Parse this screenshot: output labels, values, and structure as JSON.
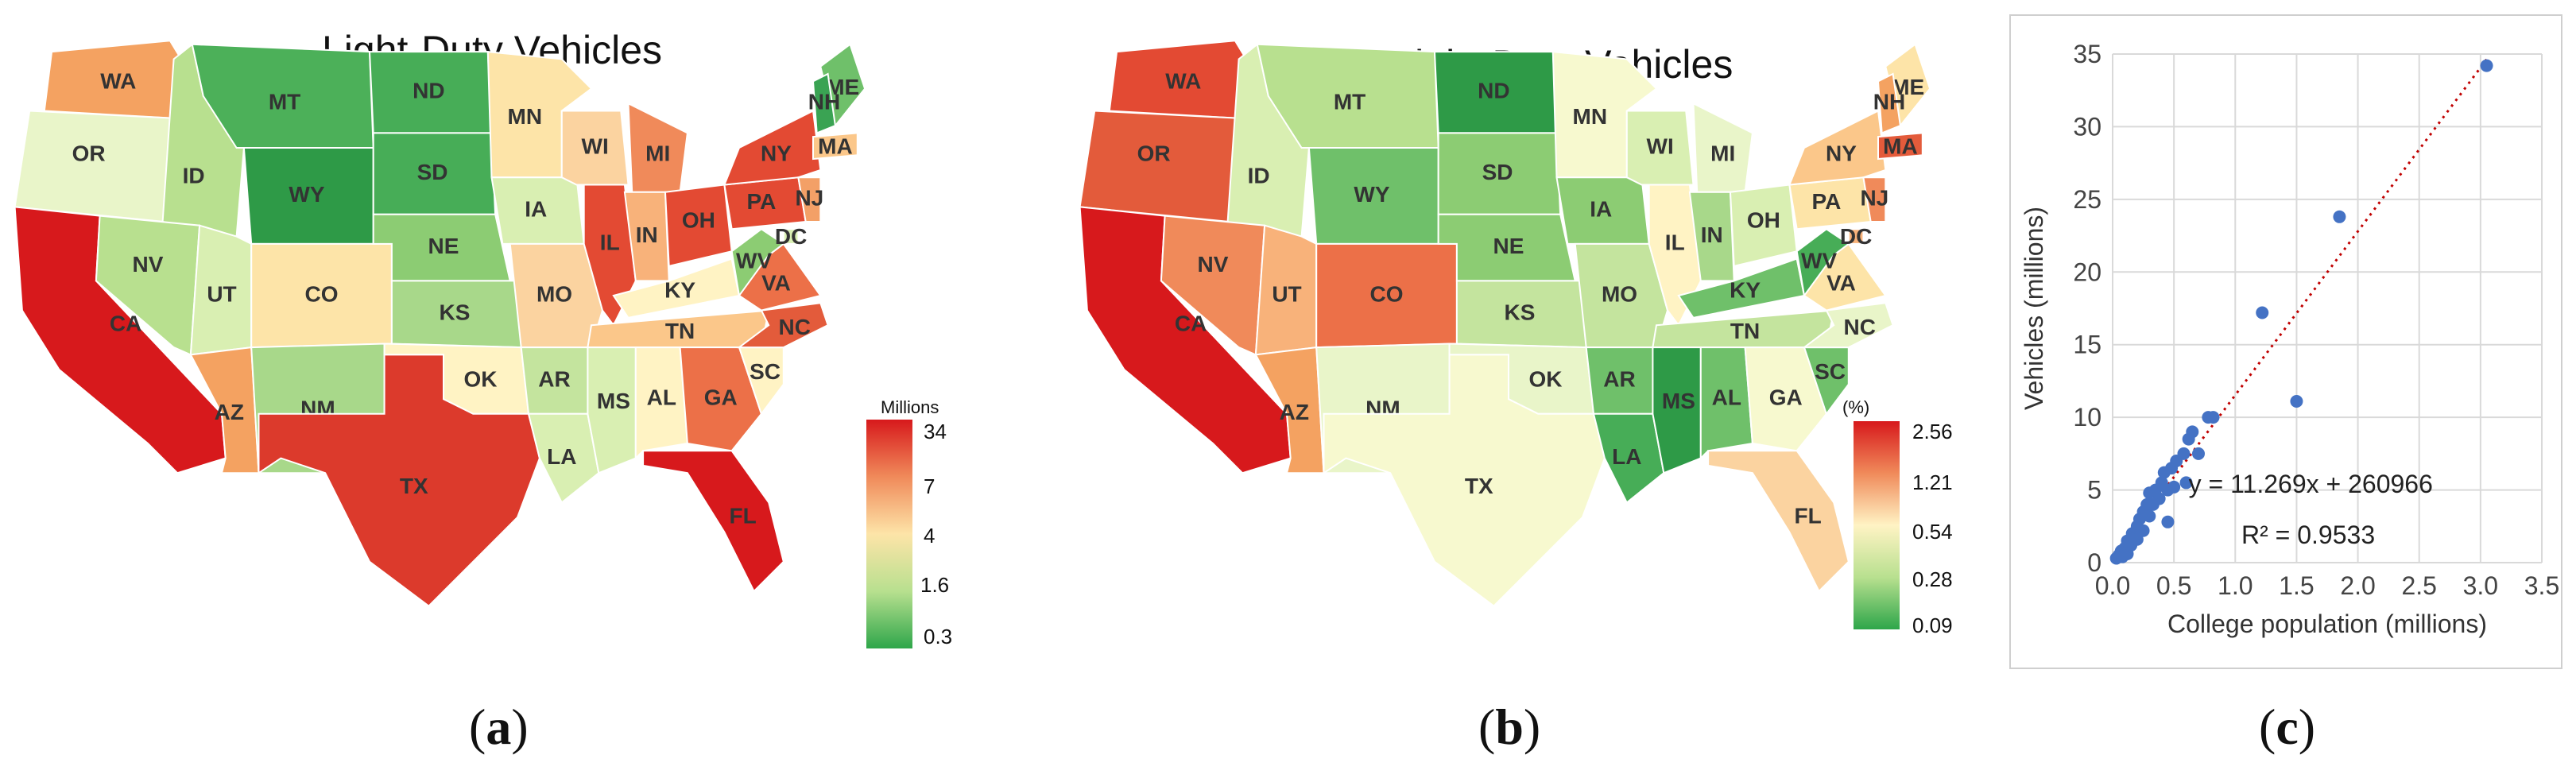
{
  "panel_a": {
    "title": "Light-Duty Vehicles",
    "caption": "a",
    "legend": {
      "title": "Millions",
      "ticks": [
        "34",
        "7",
        "4",
        "1.6",
        "0.3"
      ]
    },
    "states": [
      {
        "abbr": "WA",
        "color": "#f4a261"
      },
      {
        "abbr": "OR",
        "color": "#e9f5c9"
      },
      {
        "abbr": "CA",
        "color": "#d7191c"
      },
      {
        "abbr": "ID",
        "color": "#b8e08f"
      },
      {
        "abbr": "NV",
        "color": "#b8e08f"
      },
      {
        "abbr": "UT",
        "color": "#d9efb2"
      },
      {
        "abbr": "AZ",
        "color": "#f4a261"
      },
      {
        "abbr": "MT",
        "color": "#4cb059"
      },
      {
        "abbr": "WY",
        "color": "#2e9a47"
      },
      {
        "abbr": "CO",
        "color": "#fde4a8"
      },
      {
        "abbr": "NM",
        "color": "#a8d88a"
      },
      {
        "abbr": "ND",
        "color": "#47ad57"
      },
      {
        "abbr": "SD",
        "color": "#47ad57"
      },
      {
        "abbr": "NE",
        "color": "#8ccc73"
      },
      {
        "abbr": "KS",
        "color": "#a8d88a"
      },
      {
        "abbr": "OK",
        "color": "#fff3c4"
      },
      {
        "abbr": "TX",
        "color": "#dc3a2c"
      },
      {
        "abbr": "MN",
        "color": "#fde4a8"
      },
      {
        "abbr": "IA",
        "color": "#d9efb2"
      },
      {
        "abbr": "MO",
        "color": "#fbd3a0"
      },
      {
        "abbr": "AR",
        "color": "#c4e49e"
      },
      {
        "abbr": "LA",
        "color": "#d9efb2"
      },
      {
        "abbr": "WI",
        "color": "#fbd3a0"
      },
      {
        "abbr": "IL",
        "color": "#e34a33"
      },
      {
        "abbr": "MI",
        "color": "#f08a5a"
      },
      {
        "abbr": "IN",
        "color": "#f8b27a"
      },
      {
        "abbr": "OH",
        "color": "#e34a33"
      },
      {
        "abbr": "KY",
        "color": "#fff3c4"
      },
      {
        "abbr": "TN",
        "color": "#fbc78a"
      },
      {
        "abbr": "MS",
        "color": "#d9efb2"
      },
      {
        "abbr": "AL",
        "color": "#fff3c4"
      },
      {
        "abbr": "GA",
        "color": "#ec7048"
      },
      {
        "abbr": "FL",
        "color": "#d7191c"
      },
      {
        "abbr": "SC",
        "color": "#fff3c4"
      },
      {
        "abbr": "NC",
        "color": "#e35b3b"
      },
      {
        "abbr": "VA",
        "color": "#ec7048"
      },
      {
        "abbr": "WV",
        "color": "#8ccc73"
      },
      {
        "abbr": "PA",
        "color": "#e34a33"
      },
      {
        "abbr": "NY",
        "color": "#e34a33"
      },
      {
        "abbr": "ME",
        "color": "#6fc06a"
      },
      {
        "abbr": "NH",
        "color": "#3aa353"
      },
      {
        "abbr": "MA",
        "color": "#fbc78a"
      },
      {
        "abbr": "NJ",
        "color": "#f3a067"
      },
      {
        "abbr": "DC",
        "color": "#d9efb2"
      }
    ]
  },
  "panel_b": {
    "title": "Plug-In Light-Duty Vehicles",
    "caption": "b",
    "legend": {
      "title": "(%)",
      "ticks": [
        "2.56",
        "1.21",
        "0.54",
        "0.28",
        "0.09"
      ]
    },
    "states": [
      {
        "abbr": "WA",
        "color": "#e34a33"
      },
      {
        "abbr": "OR",
        "color": "#e35b3b"
      },
      {
        "abbr": "CA",
        "color": "#d7191c"
      },
      {
        "abbr": "ID",
        "color": "#d9efb2"
      },
      {
        "abbr": "NV",
        "color": "#f08a5a"
      },
      {
        "abbr": "UT",
        "color": "#f8b27a"
      },
      {
        "abbr": "AZ",
        "color": "#f4a261"
      },
      {
        "abbr": "MT",
        "color": "#b8e08f"
      },
      {
        "abbr": "WY",
        "color": "#6fc06a"
      },
      {
        "abbr": "CO",
        "color": "#ec7048"
      },
      {
        "abbr": "NM",
        "color": "#e9f5c9"
      },
      {
        "abbr": "ND",
        "color": "#2e9a47"
      },
      {
        "abbr": "SD",
        "color": "#8ccc73"
      },
      {
        "abbr": "NE",
        "color": "#8ccc73"
      },
      {
        "abbr": "KS",
        "color": "#c4e49e"
      },
      {
        "abbr": "OK",
        "color": "#e9f5c9"
      },
      {
        "abbr": "TX",
        "color": "#f7f9cf"
      },
      {
        "abbr": "MN",
        "color": "#f7f9cf"
      },
      {
        "abbr": "IA",
        "color": "#8ccc73"
      },
      {
        "abbr": "MO",
        "color": "#c4e49e"
      },
      {
        "abbr": "AR",
        "color": "#6fc06a"
      },
      {
        "abbr": "LA",
        "color": "#47ad57"
      },
      {
        "abbr": "WI",
        "color": "#d9efb2"
      },
      {
        "abbr": "IL",
        "color": "#fff3c4"
      },
      {
        "abbr": "MI",
        "color": "#e9f5c9"
      },
      {
        "abbr": "IN",
        "color": "#a8d88a"
      },
      {
        "abbr": "OH",
        "color": "#d9efb2"
      },
      {
        "abbr": "KY",
        "color": "#6fc06a"
      },
      {
        "abbr": "TN",
        "color": "#c4e49e"
      },
      {
        "abbr": "MS",
        "color": "#2e9a47"
      },
      {
        "abbr": "AL",
        "color": "#6fc06a"
      },
      {
        "abbr": "GA",
        "color": "#f7f9cf"
      },
      {
        "abbr": "FL",
        "color": "#fbd3a0"
      },
      {
        "abbr": "SC",
        "color": "#6fc06a"
      },
      {
        "abbr": "NC",
        "color": "#e9f5c9"
      },
      {
        "abbr": "VA",
        "color": "#fde4a8"
      },
      {
        "abbr": "WV",
        "color": "#47ad57"
      },
      {
        "abbr": "PA",
        "color": "#fde4a8"
      },
      {
        "abbr": "NY",
        "color": "#fbc78a"
      },
      {
        "abbr": "ME",
        "color": "#fde4a8"
      },
      {
        "abbr": "NH",
        "color": "#f4a261"
      },
      {
        "abbr": "MA",
        "color": "#e35b3b"
      },
      {
        "abbr": "NJ",
        "color": "#f08a5a"
      },
      {
        "abbr": "DC",
        "color": "#f8b27a"
      }
    ]
  },
  "panel_c": {
    "caption": "c",
    "equation": "y = 11.269x + 260966",
    "r_squared": "R² = 0.9533"
  },
  "chart_data": {
    "type": "scatter",
    "title": "",
    "xlabel": "College population (millions)",
    "ylabel": "Vehicles (millions)",
    "xlim": [
      0,
      3.5
    ],
    "ylim": [
      0,
      35
    ],
    "xticks": [
      "0.0",
      "0.5",
      "1.0",
      "1.5",
      "2.0",
      "2.5",
      "3.0",
      "3.5"
    ],
    "yticks": [
      "0",
      "5",
      "10",
      "15",
      "20",
      "25",
      "30",
      "35"
    ],
    "grid": true,
    "series": [
      {
        "name": "states",
        "color": "#4472c4",
        "points": [
          [
            0.03,
            0.3
          ],
          [
            0.05,
            0.5
          ],
          [
            0.07,
            0.8
          ],
          [
            0.08,
            0.4
          ],
          [
            0.1,
            1.0
          ],
          [
            0.12,
            0.6
          ],
          [
            0.12,
            1.5
          ],
          [
            0.15,
            1.2
          ],
          [
            0.16,
            2.0
          ],
          [
            0.18,
            1.8
          ],
          [
            0.2,
            2.5
          ],
          [
            0.2,
            1.6
          ],
          [
            0.22,
            3.0
          ],
          [
            0.25,
            2.2
          ],
          [
            0.25,
            3.5
          ],
          [
            0.28,
            4.0
          ],
          [
            0.3,
            3.2
          ],
          [
            0.3,
            4.8
          ],
          [
            0.33,
            4.0
          ],
          [
            0.35,
            5.0
          ],
          [
            0.38,
            4.4
          ],
          [
            0.4,
            5.5
          ],
          [
            0.42,
            6.2
          ],
          [
            0.45,
            5.0
          ],
          [
            0.45,
            2.8
          ],
          [
            0.48,
            6.5
          ],
          [
            0.5,
            5.2
          ],
          [
            0.52,
            7.0
          ],
          [
            0.58,
            7.5
          ],
          [
            0.6,
            5.5
          ],
          [
            0.62,
            8.5
          ],
          [
            0.65,
            9.0
          ],
          [
            0.7,
            7.5
          ],
          [
            0.78,
            10.0
          ],
          [
            0.82,
            10.0
          ],
          [
            1.22,
            17.2
          ],
          [
            1.5,
            11.1
          ],
          [
            1.85,
            23.8
          ],
          [
            3.05,
            34.2
          ]
        ]
      }
    ],
    "trendline": {
      "slope": 11.269,
      "intercept_millions": 0.260966,
      "style": "dotted",
      "color": "#c00000"
    }
  }
}
